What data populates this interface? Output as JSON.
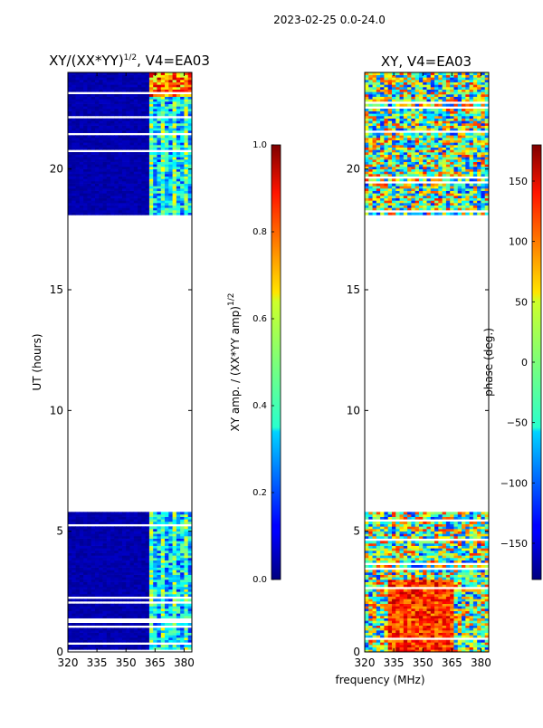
{
  "figure_title": "2023-02-25 0.0-24.0",
  "shared_xlabel": "frequency (MHz)",
  "chart_data": [
    {
      "type": "heatmap",
      "title_prefix": "XY/(XX*YY)",
      "title_exp": "1/2",
      "title_suffix": ", V4=EA03",
      "ylabel": "UT (hours)",
      "xlim": [
        320,
        384
      ],
      "ylim": [
        0,
        24
      ],
      "xticks": [
        320,
        335,
        350,
        365,
        380
      ],
      "yticks": [
        0,
        5,
        10,
        15,
        20
      ],
      "colorbar": {
        "label": "XY amp. / (XX*YY amp)",
        "label_exp": "1/2",
        "range": [
          0.0,
          1.0
        ],
        "ticks": [
          "0.0",
          "0.2",
          "0.4",
          "0.6",
          "0.8",
          "1.0"
        ]
      },
      "colormap": "jet",
      "data_segments_hours": [
        [
          0,
          5.8
        ],
        [
          18.1,
          24
        ]
      ]
    },
    {
      "type": "heatmap",
      "title": "XY, V4=EA03",
      "ylabel": "",
      "xlim": [
        320,
        384
      ],
      "ylim": [
        0,
        24
      ],
      "xticks": [
        320,
        335,
        350,
        365,
        380
      ],
      "yticks": [
        0,
        5,
        10,
        15,
        20
      ],
      "colorbar": {
        "label": "phase (deg.)",
        "range": [
          -180,
          180
        ],
        "ticks": [
          "−150",
          "−100",
          "−50",
          "0",
          "50",
          "100",
          "150"
        ],
        "tick_values": [
          -150,
          -100,
          -50,
          0,
          50,
          100,
          150
        ]
      },
      "colormap": "jet",
      "data_segments_hours": [
        [
          0,
          5.8
        ],
        [
          18.1,
          24
        ]
      ]
    }
  ]
}
